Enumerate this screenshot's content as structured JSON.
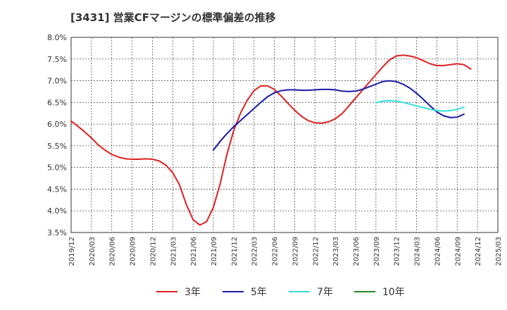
{
  "chart_data": {
    "type": "line",
    "title": "[3431]  営業CFマージンの標準偏差の推移",
    "xlabel": "",
    "ylabel": "",
    "ylim": [
      3.5,
      8.0
    ],
    "yticks": [
      "3.5%",
      "4.0%",
      "4.5%",
      "5.0%",
      "5.5%",
      "6.0%",
      "6.5%",
      "7.0%",
      "7.5%",
      "8.0%"
    ],
    "xticks": [
      "2019/12",
      "2020/03",
      "2020/06",
      "2020/09",
      "2020/12",
      "2021/03",
      "2021/06",
      "2021/09",
      "2021/12",
      "2022/03",
      "2022/06",
      "2022/09",
      "2022/12",
      "2023/03",
      "2023/06",
      "2023/09",
      "2023/12",
      "2024/03",
      "2024/06",
      "2024/09",
      "2024/12",
      "2025/03"
    ],
    "grid": true,
    "legend_position": "bottom",
    "series": [
      {
        "name": "3年",
        "color": "#dd2222",
        "points": [
          [
            "2019/12",
            6.07
          ],
          [
            "2020/01",
            5.95
          ],
          [
            "2020/02",
            5.82
          ],
          [
            "2020/03",
            5.68
          ],
          [
            "2020/04",
            5.52
          ],
          [
            "2020/05",
            5.4
          ],
          [
            "2020/06",
            5.3
          ],
          [
            "2020/07",
            5.24
          ],
          [
            "2020/08",
            5.2
          ],
          [
            "2020/09",
            5.19
          ],
          [
            "2020/10",
            5.19
          ],
          [
            "2020/11",
            5.2
          ],
          [
            "2020/12",
            5.19
          ],
          [
            "2021/01",
            5.15
          ],
          [
            "2021/02",
            5.05
          ],
          [
            "2021/03",
            4.88
          ],
          [
            "2021/04",
            4.6
          ],
          [
            "2021/05",
            4.15
          ],
          [
            "2021/06",
            3.8
          ],
          [
            "2021/07",
            3.67
          ],
          [
            "2021/08",
            3.75
          ],
          [
            "2021/09",
            4.08
          ],
          [
            "2021/10",
            4.62
          ],
          [
            "2021/11",
            5.3
          ],
          [
            "2021/12",
            5.85
          ],
          [
            "2022/01",
            6.25
          ],
          [
            "2022/02",
            6.55
          ],
          [
            "2022/03",
            6.77
          ],
          [
            "2022/04",
            6.88
          ],
          [
            "2022/05",
            6.88
          ],
          [
            "2022/06",
            6.8
          ],
          [
            "2022/07",
            6.65
          ],
          [
            "2022/08",
            6.48
          ],
          [
            "2022/09",
            6.32
          ],
          [
            "2022/10",
            6.18
          ],
          [
            "2022/11",
            6.08
          ],
          [
            "2022/12",
            6.03
          ],
          [
            "2023/01",
            6.02
          ],
          [
            "2023/02",
            6.05
          ],
          [
            "2023/03",
            6.12
          ],
          [
            "2023/04",
            6.24
          ],
          [
            "2023/05",
            6.42
          ],
          [
            "2023/06",
            6.6
          ],
          [
            "2023/07",
            6.78
          ],
          [
            "2023/08",
            6.96
          ],
          [
            "2023/09",
            7.14
          ],
          [
            "2023/10",
            7.32
          ],
          [
            "2023/11",
            7.48
          ],
          [
            "2023/12",
            7.57
          ],
          [
            "2024/01",
            7.59
          ],
          [
            "2024/02",
            7.57
          ],
          [
            "2024/03",
            7.53
          ],
          [
            "2024/04",
            7.46
          ],
          [
            "2024/05",
            7.39
          ],
          [
            "2024/06",
            7.35
          ],
          [
            "2024/07",
            7.35
          ],
          [
            "2024/08",
            7.37
          ],
          [
            "2024/09",
            7.39
          ],
          [
            "2024/10",
            7.37
          ],
          [
            "2024/11",
            7.27
          ]
        ]
      },
      {
        "name": "5年",
        "color": "#1a1aaa",
        "points": [
          [
            "2021/09",
            5.4
          ],
          [
            "2021/10",
            5.6
          ],
          [
            "2021/11",
            5.78
          ],
          [
            "2021/12",
            5.94
          ],
          [
            "2022/01",
            6.08
          ],
          [
            "2022/02",
            6.22
          ],
          [
            "2022/03",
            6.36
          ],
          [
            "2022/04",
            6.5
          ],
          [
            "2022/05",
            6.63
          ],
          [
            "2022/06",
            6.72
          ],
          [
            "2022/07",
            6.77
          ],
          [
            "2022/08",
            6.79
          ],
          [
            "2022/09",
            6.79
          ],
          [
            "2022/10",
            6.78
          ],
          [
            "2022/11",
            6.78
          ],
          [
            "2022/12",
            6.79
          ],
          [
            "2023/01",
            6.8
          ],
          [
            "2023/02",
            6.8
          ],
          [
            "2023/03",
            6.79
          ],
          [
            "2023/04",
            6.76
          ],
          [
            "2023/05",
            6.75
          ],
          [
            "2023/06",
            6.76
          ],
          [
            "2023/07",
            6.8
          ],
          [
            "2023/08",
            6.86
          ],
          [
            "2023/09",
            6.92
          ],
          [
            "2023/10",
            6.98
          ],
          [
            "2023/11",
            7.0
          ],
          [
            "2023/12",
            6.98
          ],
          [
            "2024/01",
            6.92
          ],
          [
            "2024/02",
            6.83
          ],
          [
            "2024/03",
            6.71
          ],
          [
            "2024/04",
            6.57
          ],
          [
            "2024/05",
            6.42
          ],
          [
            "2024/06",
            6.28
          ],
          [
            "2024/07",
            6.19
          ],
          [
            "2024/08",
            6.15
          ],
          [
            "2024/09",
            6.16
          ],
          [
            "2024/10",
            6.23
          ]
        ]
      },
      {
        "name": "7年",
        "color": "#33dddd",
        "points": [
          [
            "2023/09",
            6.49
          ],
          [
            "2023/10",
            6.53
          ],
          [
            "2023/11",
            6.54
          ],
          [
            "2023/12",
            6.53
          ],
          [
            "2024/01",
            6.5
          ],
          [
            "2024/02",
            6.46
          ],
          [
            "2024/03",
            6.42
          ],
          [
            "2024/04",
            6.38
          ],
          [
            "2024/05",
            6.34
          ],
          [
            "2024/06",
            6.31
          ],
          [
            "2024/07",
            6.3
          ],
          [
            "2024/08",
            6.31
          ],
          [
            "2024/09",
            6.34
          ],
          [
            "2024/10",
            6.39
          ]
        ]
      },
      {
        "name": "10年",
        "color": "#228822",
        "points": []
      }
    ]
  }
}
